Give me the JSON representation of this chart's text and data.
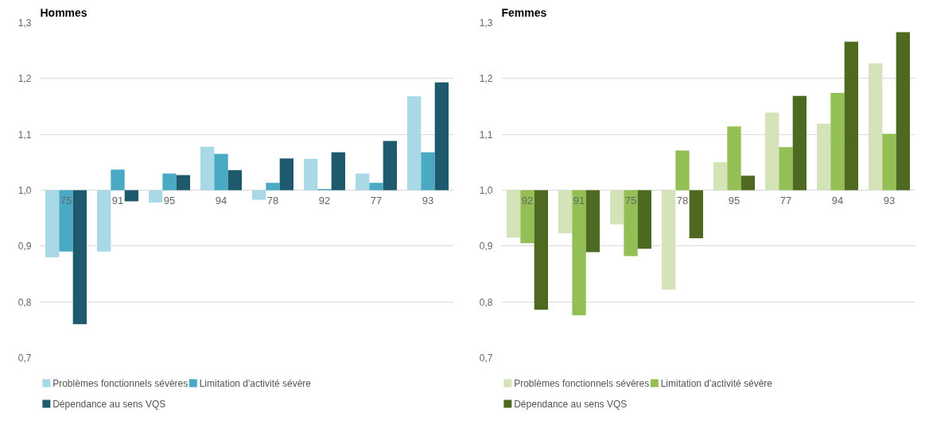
{
  "chart_data": [
    {
      "type": "bar",
      "title": "Hommes",
      "categories": [
        "75",
        "91",
        "95",
        "94",
        "78",
        "92",
        "77",
        "93"
      ],
      "ylim": [
        0.7,
        1.3
      ],
      "yticks": [
        {
          "value": 0.7,
          "label": "0,7"
        },
        {
          "value": 0.8,
          "label": "0,8"
        },
        {
          "value": 0.9,
          "label": "0,9"
        },
        {
          "value": 1.0,
          "label": "1,0"
        },
        {
          "value": 1.1,
          "label": "1,1"
        },
        {
          "value": 1.2,
          "label": "1,2"
        },
        {
          "value": 1.3,
          "label": "1,3"
        }
      ],
      "grid": "y",
      "legend": "bottom",
      "series": [
        {
          "name": "Problèmes fonctionnels sévères",
          "color": "#a9d8e6",
          "base": [
            1,
            1,
            1,
            1,
            1,
            1,
            1,
            1
          ],
          "values": [
            -0.12,
            -0.11,
            -0.022,
            0.078,
            -0.017,
            0.056,
            0.03,
            0.168
          ]
        },
        {
          "name": "Limitation d'activité sévère",
          "color": "#4aaac4",
          "base": [
            1,
            1,
            1,
            1,
            1,
            1,
            1,
            1
          ],
          "values": [
            -0.11,
            0.037,
            0.03,
            0.065,
            0.013,
            0.002,
            0.013,
            0.068
          ]
        },
        {
          "name": "Dépendance au sens VQS",
          "color": "#1e5a6e",
          "base": [
            1,
            1,
            1,
            1,
            1,
            1,
            1,
            1
          ],
          "values": [
            -0.24,
            -0.02,
            0.027,
            0.036,
            0.057,
            0.068,
            0.088,
            0.193
          ]
        }
      ]
    },
    {
      "type": "bar",
      "title": "Femmes",
      "categories": [
        "92",
        "91",
        "75",
        "78",
        "95",
        "77",
        "94",
        "93"
      ],
      "ylim": [
        0.7,
        1.3
      ],
      "yticks": [
        {
          "value": 0.7,
          "label": "0,7"
        },
        {
          "value": 0.8,
          "label": "0,8"
        },
        {
          "value": 0.9,
          "label": "0,9"
        },
        {
          "value": 1.0,
          "label": "1,0"
        },
        {
          "value": 1.1,
          "label": "1,1"
        },
        {
          "value": 1.2,
          "label": "1,2"
        },
        {
          "value": 1.3,
          "label": "1,3"
        }
      ],
      "grid": "y",
      "legend": "bottom",
      "series": [
        {
          "name": "Problèmes fonctionnels sévères",
          "color": "#d5e3b8",
          "base": [
            1,
            1,
            1,
            1,
            1,
            1,
            1,
            1
          ],
          "values": [
            -0.085,
            -0.077,
            -0.061,
            -0.178,
            0.05,
            0.139,
            0.119,
            0.227
          ]
        },
        {
          "name": "Limitation d'activité sévère",
          "color": "#93bf55",
          "base": [
            1,
            1,
            1,
            1,
            1,
            1,
            1,
            1
          ],
          "values": [
            -0.095,
            -0.224,
            -0.118,
            0.071,
            0.114,
            0.077,
            0.174,
            0.101
          ]
        },
        {
          "name": "Dépendance au sens VQS",
          "color": "#4e6a21",
          "base": [
            1,
            1,
            1,
            1,
            1,
            1,
            1,
            1
          ],
          "values": [
            -0.214,
            -0.111,
            -0.105,
            -0.086,
            0.026,
            0.169,
            0.266,
            0.283
          ]
        }
      ]
    }
  ]
}
